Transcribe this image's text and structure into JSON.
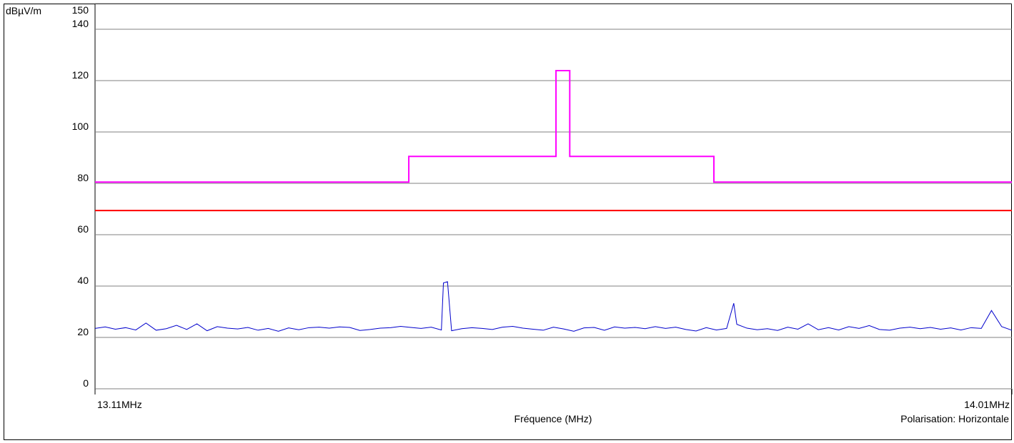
{
  "chart_data": {
    "type": "line",
    "y_label": "dBµV/m",
    "x_label": "Fréquence (MHz)",
    "note": "Polarisation: Horizontale",
    "xlim": [
      13.11,
      14.01
    ],
    "xticks": [
      {
        "value": 13.11,
        "label": "13.11MHz"
      },
      {
        "value": 14.01,
        "label": "14.01MHz"
      }
    ],
    "ylim": [
      0,
      150
    ],
    "yticks": [
      0,
      20,
      40,
      60,
      80,
      100,
      120,
      140,
      150
    ],
    "grid": true,
    "series": [
      {
        "color": "#ff00ff",
        "x": [
          13.11,
          13.418,
          13.418,
          13.5625,
          13.5625,
          13.576,
          13.576,
          13.7175,
          13.7175,
          14.01
        ],
        "values": [
          80.5,
          80.5,
          90.5,
          90.5,
          123.9,
          123.9,
          90.5,
          90.5,
          80.5,
          80.5
        ]
      },
      {
        "color": "#ff0000",
        "x": [
          13.11,
          14.01
        ],
        "values": [
          69.4,
          69.4
        ]
      },
      {
        "color": "#0000cc",
        "x": [
          13.11,
          13.12,
          13.13,
          13.14,
          13.15,
          13.16,
          13.17,
          13.18,
          13.19,
          13.2,
          13.21,
          13.22,
          13.23,
          13.24,
          13.25,
          13.26,
          13.27,
          13.28,
          13.29,
          13.3,
          13.31,
          13.32,
          13.33,
          13.34,
          13.35,
          13.36,
          13.37,
          13.38,
          13.39,
          13.4,
          13.41,
          13.42,
          13.43,
          13.44,
          13.45,
          13.452,
          13.456,
          13.46,
          13.47,
          13.48,
          13.49,
          13.5,
          13.51,
          13.52,
          13.53,
          13.54,
          13.55,
          13.56,
          13.57,
          13.58,
          13.59,
          13.6,
          13.61,
          13.62,
          13.63,
          13.64,
          13.65,
          13.66,
          13.67,
          13.68,
          13.69,
          13.7,
          13.71,
          13.72,
          13.73,
          13.737,
          13.74,
          13.75,
          13.76,
          13.77,
          13.78,
          13.79,
          13.8,
          13.81,
          13.82,
          13.83,
          13.84,
          13.85,
          13.86,
          13.87,
          13.88,
          13.89,
          13.9,
          13.91,
          13.92,
          13.93,
          13.94,
          13.95,
          13.96,
          13.97,
          13.98,
          13.99,
          14.0,
          14.01
        ],
        "values": [
          23.5,
          24.1,
          23.2,
          23.8,
          22.9,
          25.6,
          22.8,
          23.4,
          24.7,
          23.1,
          25.3,
          22.6,
          24.2,
          23.6,
          23.3,
          23.9,
          22.8,
          23.5,
          22.4,
          23.7,
          23.0,
          23.8,
          24.0,
          23.6,
          24.1,
          23.9,
          22.7,
          23.1,
          23.6,
          23.8,
          24.3,
          23.9,
          23.5,
          24.0,
          22.9,
          41.2,
          41.7,
          22.6,
          23.4,
          23.8,
          23.5,
          23.1,
          24.0,
          24.3,
          23.6,
          23.2,
          22.8,
          24.0,
          23.3,
          22.4,
          23.7,
          23.9,
          22.8,
          24.1,
          23.6,
          23.9,
          23.4,
          24.2,
          23.5,
          24.0,
          23.1,
          22.5,
          23.8,
          22.9,
          23.5,
          33.3,
          25.1,
          23.6,
          23.0,
          23.4,
          22.7,
          24.0,
          23.2,
          25.3,
          23.0,
          23.8,
          22.9,
          24.2,
          23.5,
          24.6,
          23.1,
          22.8,
          23.6,
          24.0,
          23.4,
          23.9,
          23.2,
          23.7,
          22.9,
          23.8,
          23.5,
          30.5,
          24.2,
          22.8
        ]
      }
    ]
  }
}
